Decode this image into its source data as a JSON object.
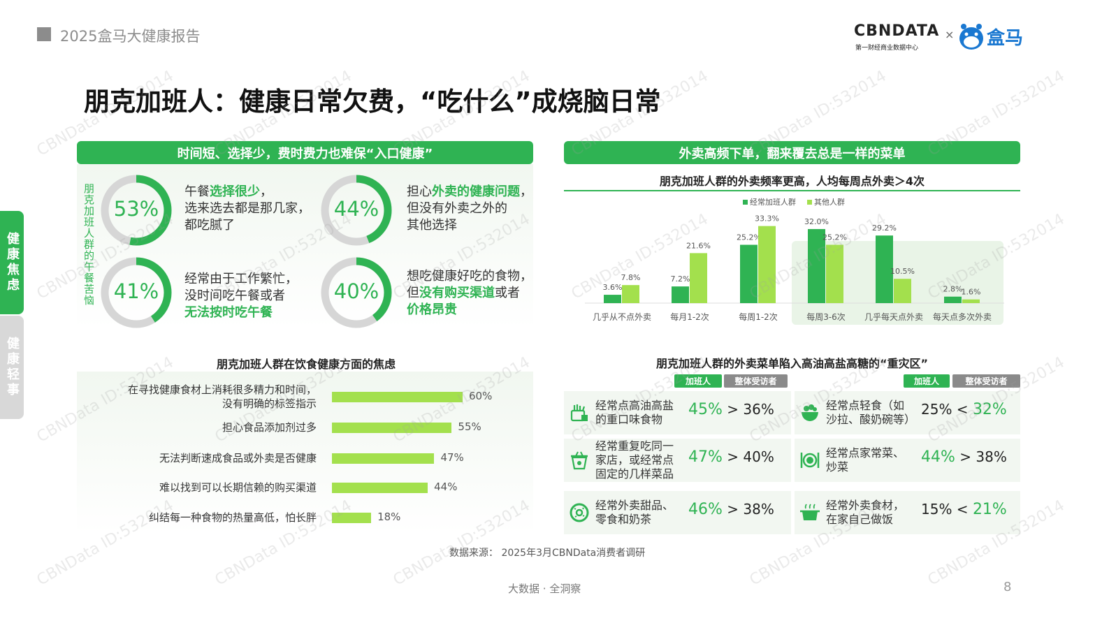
{
  "header": {
    "report_title": "2025盒马大健康报告"
  },
  "logos": {
    "cbndata_text": "CBNDATA",
    "cbndata_sub": "第一财经商业数据中心",
    "times": "×",
    "hema_text": "盒马"
  },
  "main_title": "朋克加班人：健康日常欠费，“吃什么”成烧脑日常",
  "side_tabs": {
    "active": "健康焦虑",
    "inactive": "健康轻事"
  },
  "left_panel": {
    "bar_title": "时间短、选择少，费时费力也难保“入口健康”",
    "side_label": "朋克加班人群的午餐苦恼",
    "worries": [
      {
        "pct": "53%",
        "value": 53,
        "lines": [
          [
            "午餐",
            "选择很少",
            "，"
          ],
          [
            "选来选去都是那几家，"
          ],
          [
            "都吃腻了"
          ]
        ]
      },
      {
        "pct": "44%",
        "value": 44,
        "lines": [
          [
            "担心",
            "外卖的健康问题",
            "，"
          ],
          [
            "但没有外卖之外的"
          ],
          [
            "其他选择"
          ]
        ]
      },
      {
        "pct": "41%",
        "value": 41,
        "lines": [
          [
            "经常由于工作繁忙，"
          ],
          [
            "没时间吃午餐或者"
          ],
          [
            "",
            "无法按时吃午餐",
            ""
          ]
        ]
      },
      {
        "pct": "40%",
        "value": 40,
        "lines": [
          [
            "想吃健康好吃的食物，"
          ],
          [
            "但",
            "没有购买渠道",
            "或者"
          ],
          [
            "",
            "价格昂贵",
            ""
          ]
        ]
      }
    ]
  },
  "concerns": {
    "title": "朋克加班人群在饮食健康方面的焦虑",
    "items": [
      {
        "label": "在寻找健康食材上消耗很多精力和时间，\n没有明确的标签指示",
        "value": 60,
        "display": "60%"
      },
      {
        "label": "担心食品添加剂过多",
        "value": 55,
        "display": "55%"
      },
      {
        "label": "无法判断速成食品或外卖是否健康",
        "value": 47,
        "display": "47%"
      },
      {
        "label": "难以找到可以长期信赖的购买渠道",
        "value": 44,
        "display": "44%"
      },
      {
        "label": "纠结每一种食物的热量高低，怕长胖",
        "value": 18,
        "display": "18%"
      }
    ]
  },
  "right_panel": {
    "bar_title": "外卖高频下单，翻来覆去总是一样的菜单",
    "freq_title": "朋克加班人群的外卖频率更高，人均每周点外卖＞4次"
  },
  "chart_data": {
    "type": "bar",
    "categories": [
      "几乎从不点外卖",
      "每月1-2次",
      "每周1-2次",
      "每周3-6次",
      "几乎每天点外卖",
      "每天点多次外卖"
    ],
    "series": [
      {
        "name": "经常加班人群",
        "values": [
          3.6,
          7.2,
          25.2,
          32.0,
          29.2,
          2.8
        ],
        "labels": [
          "3.6%",
          "7.2%",
          "25.2%",
          "32.0%",
          "29.2%",
          "2.8%"
        ],
        "color": "#2fb353"
      },
      {
        "name": "其他人群",
        "values": [
          7.8,
          21.6,
          33.3,
          25.2,
          10.5,
          1.6
        ],
        "labels": [
          "7.8%",
          "21.6%",
          "33.3%",
          "25.2%",
          "10.5%",
          "1.6%"
        ],
        "color": "#a3e04d"
      }
    ],
    "ylim": [
      0,
      35
    ],
    "highlight_range": [
      3,
      5
    ],
    "legend_position": "top-center"
  },
  "menu": {
    "title": "朋克加班人群的外卖菜单陷入高油高盐高糖的“重灾区”",
    "tag_overtime": "加班人",
    "tag_all": "整体受访者",
    "items": [
      {
        "icon": "fried-food-icon",
        "text": "经常点高油高盐\n的重口味食物",
        "a": "45%",
        "op": ">",
        "b": "36%",
        "highlight": "a"
      },
      {
        "icon": "takeout-box-icon",
        "text": "经常重复吃同一\n家店，或经常点\n固定的几样菜品",
        "a": "47%",
        "op": ">",
        "b": "40%",
        "highlight": "a"
      },
      {
        "icon": "donut-icon",
        "text": "经常外卖甜品、\n零食和奶茶",
        "a": "46%",
        "op": ">",
        "b": "38%",
        "highlight": "a"
      },
      {
        "icon": "salad-bowl-icon",
        "text": "经常点轻食（如\n沙拉、酸奶碗等）",
        "a": "25%",
        "op": "<",
        "b": "32%",
        "highlight": "b"
      },
      {
        "icon": "plate-cutlery-icon",
        "text": "经常点家常菜、\n炒菜",
        "a": "44%",
        "op": ">",
        "b": "38%",
        "highlight": "a"
      },
      {
        "icon": "cooking-pot-icon",
        "text": "经常外卖食材，\n在家自己做饭",
        "a": "15%",
        "op": "<",
        "b": "21%",
        "highlight": "b"
      }
    ]
  },
  "source": "数据来源：  2025年3月CBNData消费者调研",
  "footer": "大数据 · 全洞察",
  "page_number": "8",
  "watermark": "CBNData ID:532014",
  "colors": {
    "primary": "#2fb353",
    "light": "#a3e04d",
    "grey": "#8a8a8a"
  }
}
